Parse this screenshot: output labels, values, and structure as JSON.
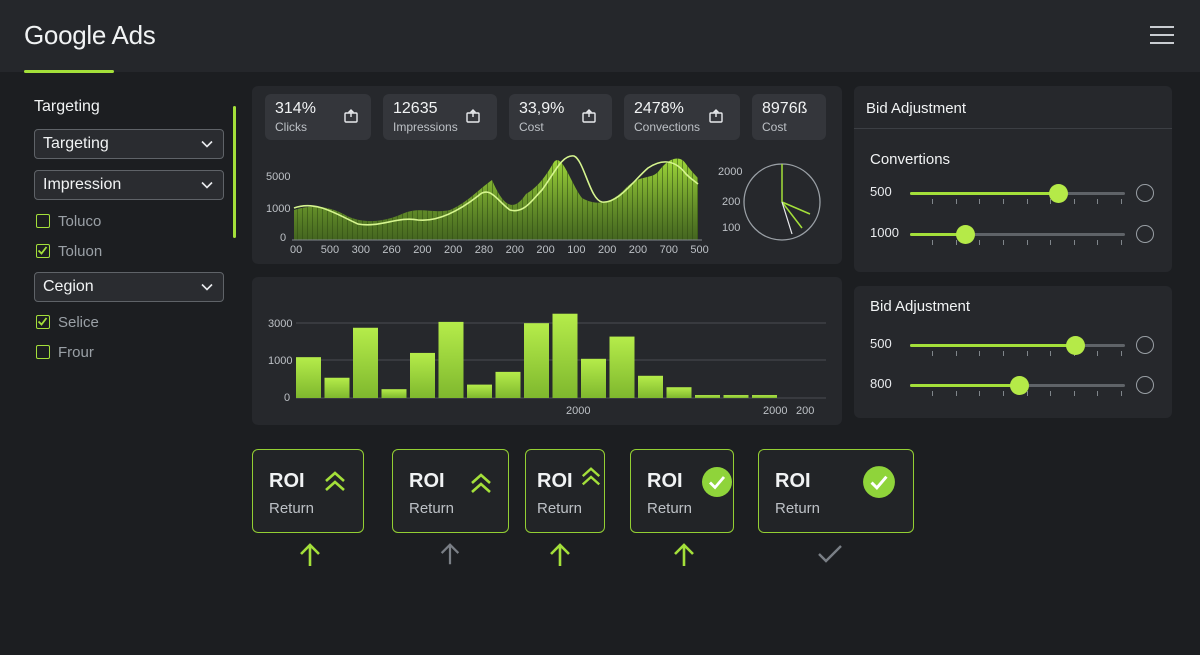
{
  "header": {
    "title": "Google Ads",
    "menu_icon": "hamburger-menu-icon"
  },
  "sidebar": {
    "title": "Targeting",
    "selects": [
      {
        "label": "Targeting"
      },
      {
        "label": "Impression"
      },
      {
        "label": "Cegion"
      }
    ],
    "checks": [
      {
        "label": "Toluco",
        "checked": false
      },
      {
        "label": "Toluon",
        "checked": true
      },
      {
        "label": "Selice",
        "checked": true
      },
      {
        "label": "Frour",
        "checked": false
      }
    ]
  },
  "kpis": [
    {
      "value": "314%",
      "label": "Clicks",
      "icon": "export-icon"
    },
    {
      "value": "12635",
      "label": "Impressions",
      "icon": "export-icon"
    },
    {
      "value": "33,9%",
      "label": "Cost",
      "icon": "export-icon"
    },
    {
      "value": "2478%",
      "label": "Convections",
      "icon": "export-icon"
    },
    {
      "value": "8976ß",
      "label": "Cost"
    }
  ],
  "area_chart": {
    "y_ticks": [
      "5000",
      "1000",
      "0"
    ],
    "x_ticks": [
      "00",
      "500",
      "300",
      "260",
      "200",
      "200",
      "280",
      "200",
      "200",
      "100",
      "200",
      "200",
      "700",
      "500"
    ]
  },
  "pie_chart": {
    "labels": [
      "2000",
      "200",
      "100"
    ]
  },
  "chart_data": {
    "type": "bar",
    "categories": [
      "",
      "",
      "",
      "",
      "",
      "",
      "",
      "",
      "",
      "",
      "",
      "",
      "",
      "",
      "",
      "",
      ""
    ],
    "values": [
      1250,
      620,
      2150,
      270,
      1380,
      2330,
      410,
      800,
      2290,
      2580,
      1200,
      1880,
      680,
      330,
      90,
      90,
      90
    ],
    "y_ticks": [
      "3000",
      "1000",
      "0"
    ],
    "x_labels": [
      "2000",
      "2000",
      "200"
    ],
    "ylim": [
      0,
      3000
    ]
  },
  "right_panel": {
    "section1": {
      "title": "Bid Adjustment",
      "subtitle": "Convertions",
      "sliders": [
        {
          "label": "500",
          "fraction": 0.69
        },
        {
          "label": "1000",
          "fraction": 0.26
        }
      ]
    },
    "section2": {
      "title": "Bid Adjustment",
      "sliders": [
        {
          "label": "500",
          "fraction": 0.77
        },
        {
          "label": "800",
          "fraction": 0.51
        }
      ]
    }
  },
  "roi_cards": [
    {
      "title": "ROI",
      "subtitle": "Return",
      "badge": "double-chevron-up-icon",
      "below": "arrow-up-icon"
    },
    {
      "title": "ROI",
      "subtitle": "Return",
      "badge": "double-chevron-up-icon",
      "below": "arrow-up-icon"
    },
    {
      "title": "ROI",
      "subtitle": "Return",
      "badge": "double-chevron-up-icon",
      "below": "arrow-up-icon"
    },
    {
      "title": "ROI",
      "subtitle": "Return",
      "badge": "check-circle-icon",
      "below": "arrow-up-icon"
    },
    {
      "title": "ROI",
      "subtitle": "Return",
      "badge": "check-circle-icon",
      "below": "checkmark-icon"
    }
  ],
  "colors": {
    "accent": "#a4e03a",
    "background": "#1c1e21",
    "panel": "#26282c"
  }
}
